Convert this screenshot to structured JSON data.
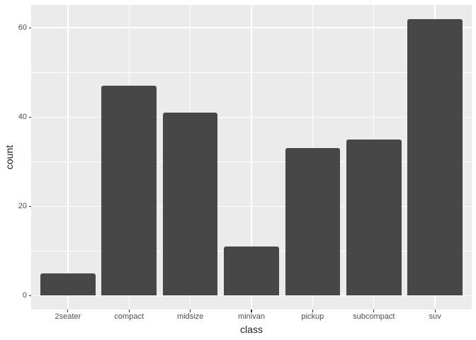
{
  "chart_data": {
    "type": "bar",
    "title": "",
    "categories": [
      "2seater",
      "compact",
      "midsize",
      "minivan",
      "pickup",
      "subcompact",
      "suv"
    ],
    "values": [
      5,
      47,
      41,
      11,
      33,
      35,
      62
    ],
    "xlabel": "class",
    "ylabel": "count",
    "y_ticks": [
      0,
      20,
      40,
      60
    ],
    "y_minor_ticks": [
      10,
      30,
      50
    ],
    "ylim": [
      0,
      62
    ],
    "y_range_expanded": [
      -3.1,
      65.1
    ],
    "bar_width_fraction": 0.9,
    "legend_position": "none",
    "grid": "on",
    "colors": {
      "bar_fill": "#474747",
      "panel_background": "#EBEBEB",
      "gridline": "#FFFFFF",
      "tick_label": "#4D4D4D",
      "axis_title": "#1A1A1A",
      "tick_mark": "#333333",
      "page_background": "#FFFFFF"
    }
  }
}
